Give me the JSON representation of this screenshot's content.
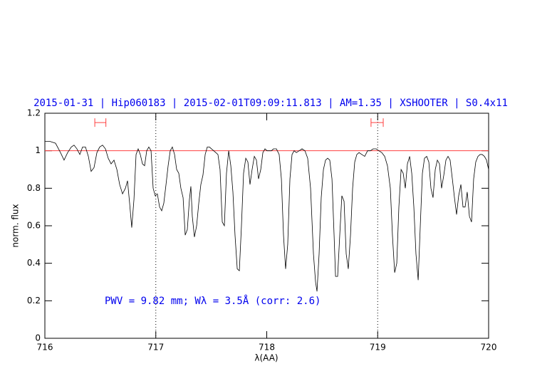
{
  "chart_data": {
    "type": "line",
    "title": "2015-01-31 | Hip060183 | 2015-02-01T09:09:11.813 | AM=1.35 | XSHOOTER | S0.4x11",
    "xlabel": "λ(AA)",
    "ylabel": "norm. flux",
    "annotation": "PWV = 9.82 mm; Wλ = 3.5Å (corr: 2.6)",
    "color": "#000000",
    "x": [
      716.0,
      716.045,
      716.096,
      716.141,
      716.173,
      716.205,
      716.238,
      716.263,
      716.289,
      716.315,
      716.34,
      716.366,
      716.392,
      716.417,
      716.443,
      716.469,
      716.494,
      716.52,
      716.546,
      716.571,
      716.597,
      716.623,
      716.649,
      716.674,
      716.7,
      716.726,
      716.745,
      716.764,
      716.783,
      716.803,
      716.822,
      716.841,
      716.86,
      716.88,
      716.899,
      716.918,
      716.937,
      716.957,
      716.976,
      716.995,
      717.014,
      717.034,
      717.053,
      717.072,
      717.092,
      717.111,
      717.13,
      717.149,
      717.169,
      717.188,
      717.207,
      717.226,
      717.246,
      717.265,
      717.284,
      717.303,
      717.316,
      717.329,
      717.348,
      717.368,
      717.387,
      717.406,
      717.425,
      717.445,
      717.464,
      717.483,
      717.502,
      717.522,
      717.541,
      717.56,
      717.579,
      717.599,
      717.618,
      717.637,
      717.657,
      717.676,
      717.695,
      717.714,
      717.734,
      717.753,
      717.772,
      717.791,
      717.811,
      717.83,
      717.849,
      717.868,
      717.888,
      717.907,
      717.926,
      717.946,
      717.965,
      717.984,
      718.003,
      718.023,
      718.042,
      718.061,
      718.087,
      718.112,
      718.132,
      718.151,
      718.17,
      718.189,
      718.209,
      718.228,
      718.247,
      718.267,
      718.292,
      718.318,
      718.344,
      718.369,
      718.395,
      718.421,
      718.44,
      718.453,
      718.472,
      718.491,
      718.511,
      718.53,
      718.549,
      718.568,
      718.588,
      718.607,
      718.62,
      718.639,
      718.658,
      718.677,
      718.697,
      718.716,
      718.735,
      718.755,
      718.774,
      718.793,
      718.812,
      718.832,
      718.857,
      718.883,
      718.909,
      718.934,
      718.96,
      718.986,
      719.011,
      719.037,
      719.063,
      719.088,
      719.114,
      719.133,
      719.153,
      719.172,
      719.191,
      719.211,
      719.23,
      719.249,
      719.268,
      719.288,
      719.307,
      719.326,
      719.345,
      719.365,
      719.384,
      719.403,
      719.422,
      719.442,
      719.461,
      719.48,
      719.499,
      719.519,
      719.538,
      719.557,
      719.576,
      719.596,
      719.615,
      719.634,
      719.653,
      719.673,
      719.692,
      719.711,
      719.73,
      719.75,
      719.769,
      719.788,
      719.807,
      719.827,
      719.846,
      719.865,
      719.884,
      719.904,
      719.923,
      719.942,
      719.962,
      719.981,
      720.0
    ],
    "values": [
      1.05,
      1.05,
      1.04,
      0.99,
      0.95,
      0.99,
      1.02,
      1.03,
      1.01,
      0.98,
      1.02,
      1.02,
      0.97,
      0.89,
      0.91,
      0.99,
      1.02,
      1.03,
      1.01,
      0.96,
      0.93,
      0.95,
      0.9,
      0.82,
      0.77,
      0.8,
      0.84,
      0.72,
      0.59,
      0.74,
      0.98,
      1.01,
      0.98,
      0.93,
      0.92,
      1.0,
      1.02,
      1.0,
      0.8,
      0.76,
      0.77,
      0.7,
      0.68,
      0.72,
      0.82,
      0.92,
      1.0,
      1.02,
      0.98,
      0.9,
      0.88,
      0.8,
      0.75,
      0.55,
      0.58,
      0.74,
      0.81,
      0.65,
      0.54,
      0.6,
      0.72,
      0.82,
      0.87,
      0.98,
      1.02,
      1.02,
      1.01,
      1.0,
      0.99,
      0.98,
      0.9,
      0.62,
      0.6,
      0.88,
      1.0,
      0.92,
      0.78,
      0.55,
      0.37,
      0.36,
      0.6,
      0.88,
      0.96,
      0.94,
      0.82,
      0.9,
      0.97,
      0.95,
      0.85,
      0.9,
      0.99,
      1.01,
      1.0,
      1.0,
      1.0,
      1.01,
      1.01,
      0.98,
      0.85,
      0.55,
      0.37,
      0.5,
      0.85,
      0.98,
      1.0,
      0.99,
      1.0,
      1.01,
      1.0,
      0.96,
      0.8,
      0.45,
      0.3,
      0.25,
      0.45,
      0.75,
      0.9,
      0.95,
      0.96,
      0.95,
      0.85,
      0.55,
      0.33,
      0.33,
      0.55,
      0.76,
      0.73,
      0.45,
      0.37,
      0.55,
      0.8,
      0.94,
      0.98,
      0.99,
      0.98,
      0.97,
      1.0,
      1.0,
      1.01,
      1.01,
      1.0,
      0.99,
      0.97,
      0.92,
      0.8,
      0.55,
      0.35,
      0.4,
      0.7,
      0.9,
      0.88,
      0.8,
      0.93,
      0.97,
      0.88,
      0.7,
      0.45,
      0.31,
      0.6,
      0.88,
      0.96,
      0.97,
      0.94,
      0.8,
      0.75,
      0.9,
      0.95,
      0.93,
      0.8,
      0.87,
      0.95,
      0.97,
      0.95,
      0.85,
      0.75,
      0.66,
      0.76,
      0.82,
      0.7,
      0.7,
      0.78,
      0.65,
      0.62,
      0.85,
      0.94,
      0.97,
      0.98,
      0.98,
      0.97,
      0.95,
      0.9
    ],
    "xlim": [
      716,
      720
    ],
    "xticks": [
      716,
      717,
      718,
      719,
      720
    ],
    "ylim": [
      0,
      1.2
    ],
    "yticks": [
      0,
      0.2,
      0.4,
      0.6,
      0.8,
      1,
      1.2
    ],
    "reference_line": {
      "y": 1,
      "color": "#ff4040"
    },
    "vlines": [
      717,
      719
    ],
    "intervals": [
      {
        "x": [
          716.45,
          716.55
        ],
        "y": 1.15,
        "color": "#ff4040"
      },
      {
        "x": [
          718.94,
          719.05
        ],
        "y": 1.15,
        "color": "#ff4040"
      }
    ]
  }
}
